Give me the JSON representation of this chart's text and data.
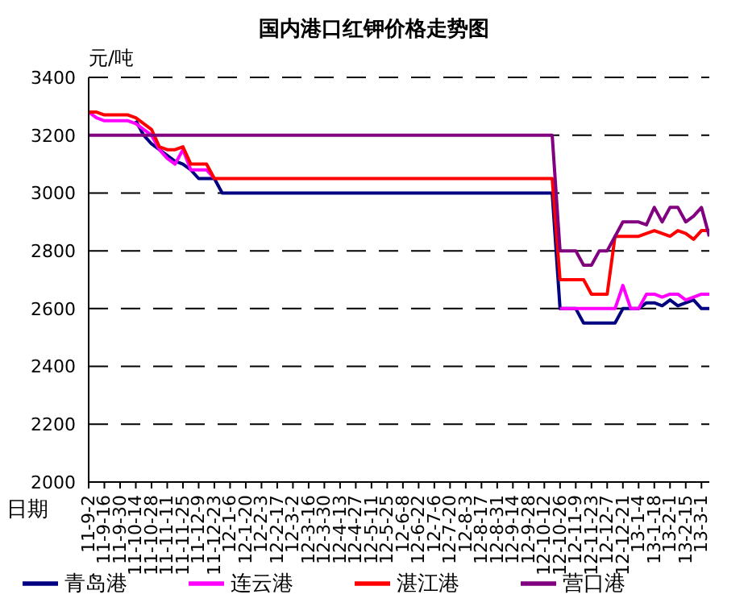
{
  "chart_data": {
    "type": "line",
    "title": "国内港口红钾价格走势图",
    "ylabel": "元/吨",
    "xlabel": "日期",
    "categories": [
      "11-9-2",
      null,
      "11-9-16",
      null,
      "11-9-30",
      null,
      "11-10-14",
      null,
      "11-10-28",
      null,
      "11-11-11",
      null,
      "11-11-25",
      null,
      "11-12-9",
      null,
      "11-12-23",
      null,
      "12-1-6",
      null,
      "12-1-20",
      null,
      "12-2-3",
      null,
      "12-2-17",
      null,
      "12-3-2",
      null,
      "12-3-16",
      null,
      "12-3-30",
      null,
      "12-4-13",
      null,
      "12-4-27",
      null,
      "12-5-11",
      null,
      "12-5-25",
      null,
      "12-6-8",
      null,
      "12-6-22",
      null,
      "12-7-6",
      null,
      "12-7-20",
      null,
      "12-8-3",
      null,
      "12-8-17",
      null,
      "12-8-31",
      null,
      "12-9-14",
      null,
      "12-9-28",
      null,
      "12-10-12",
      null,
      "12-10-26",
      null,
      "12-11-9",
      null,
      "12-11-23",
      null,
      "12-12-7",
      null,
      "12-12-21",
      null,
      "13-1-4",
      null,
      "13-1-18",
      null,
      "13-2-1",
      null,
      "13-2-15",
      null,
      "13-3-1",
      null
    ],
    "series": [
      {
        "name": "青岛港",
        "color": "#000080",
        "values": [
          null,
          null,
          null,
          null,
          null,
          null,
          3250,
          3200,
          3170,
          3150,
          3130,
          3110,
          3100,
          3080,
          3050,
          3050,
          3050,
          3000,
          3000,
          3000,
          3000,
          3000,
          3000,
          3000,
          3000,
          3000,
          3000,
          3000,
          3000,
          3000,
          3000,
          3000,
          3000,
          3000,
          3000,
          3000,
          3000,
          3000,
          3000,
          3000,
          3000,
          3000,
          3000,
          3000,
          3000,
          3000,
          3000,
          3000,
          3000,
          3000,
          3000,
          3000,
          3000,
          3000,
          3000,
          3000,
          3000,
          3000,
          3000,
          3000,
          2600,
          2600,
          2600,
          2550,
          2550,
          2550,
          2550,
          2550,
          2600,
          2600,
          2600,
          2620,
          2620,
          2610,
          2630,
          2610,
          2620,
          2630,
          2600,
          2600
        ]
      },
      {
        "name": "连云港",
        "color": "#ff00ff",
        "values": [
          3280,
          3260,
          3250,
          3250,
          3250,
          3250,
          3240,
          3220,
          3200,
          3150,
          3120,
          3100,
          3150,
          3080,
          3080,
          3080,
          3050,
          null,
          null,
          null,
          null,
          null,
          null,
          null,
          null,
          null,
          null,
          null,
          null,
          null,
          null,
          null,
          null,
          null,
          null,
          null,
          null,
          null,
          null,
          null,
          null,
          null,
          null,
          null,
          null,
          null,
          null,
          null,
          null,
          null,
          null,
          null,
          null,
          null,
          null,
          null,
          null,
          null,
          null,
          null,
          2600,
          2600,
          2600,
          2600,
          2600,
          2600,
          2600,
          2600,
          2680,
          2600,
          2600,
          2650,
          2650,
          2640,
          2650,
          2650,
          2630,
          2640,
          2650,
          2650
        ]
      },
      {
        "name": "湛江港",
        "color": "#ff0000",
        "values": [
          3280,
          3280,
          3270,
          3270,
          3270,
          3270,
          3260,
          3240,
          3220,
          3160,
          3150,
          3150,
          3160,
          3100,
          3100,
          3100,
          3050,
          3050,
          3050,
          3050,
          3050,
          3050,
          3050,
          3050,
          3050,
          3050,
          3050,
          3050,
          3050,
          3050,
          3050,
          3050,
          3050,
          3050,
          3050,
          3050,
          3050,
          3050,
          3050,
          3050,
          3050,
          3050,
          3050,
          3050,
          3050,
          3050,
          3050,
          3050,
          3050,
          3050,
          3050,
          3050,
          3050,
          3050,
          3050,
          3050,
          3050,
          3050,
          3050,
          3050,
          2700,
          2700,
          2700,
          2700,
          2650,
          2650,
          2650,
          2850,
          2850,
          2850,
          2850,
          2860,
          2870,
          2860,
          2850,
          2870,
          2860,
          2840,
          2870,
          2870
        ]
      },
      {
        "name": "营口港",
        "color": "#800080",
        "values": [
          3200,
          3200,
          3200,
          3200,
          3200,
          3200,
          3200,
          3200,
          3200,
          3200,
          3200,
          3200,
          3200,
          3200,
          3200,
          3200,
          3200,
          3200,
          3200,
          3200,
          3200,
          3200,
          3200,
          3200,
          3200,
          3200,
          3200,
          3200,
          3200,
          3200,
          3200,
          3200,
          3200,
          3200,
          3200,
          3200,
          3200,
          3200,
          3200,
          3200,
          3200,
          3200,
          3200,
          3200,
          3200,
          3200,
          3200,
          3200,
          3200,
          3200,
          3200,
          3200,
          3200,
          3200,
          3200,
          3200,
          3200,
          3200,
          3200,
          3200,
          2800,
          2800,
          2800,
          2750,
          2750,
          2800,
          2800,
          2850,
          2900,
          2900,
          2900,
          2890,
          2950,
          2900,
          2950,
          2950,
          2900,
          2920,
          2950,
          2850
        ]
      }
    ],
    "ylim": [
      2000,
      3400
    ],
    "yticks": [
      2000,
      2200,
      2400,
      2600,
      2800,
      3000,
      3200,
      3400
    ],
    "grid": "y",
    "legend": "bottom",
    "marker": "none",
    "line_style": "solid"
  }
}
